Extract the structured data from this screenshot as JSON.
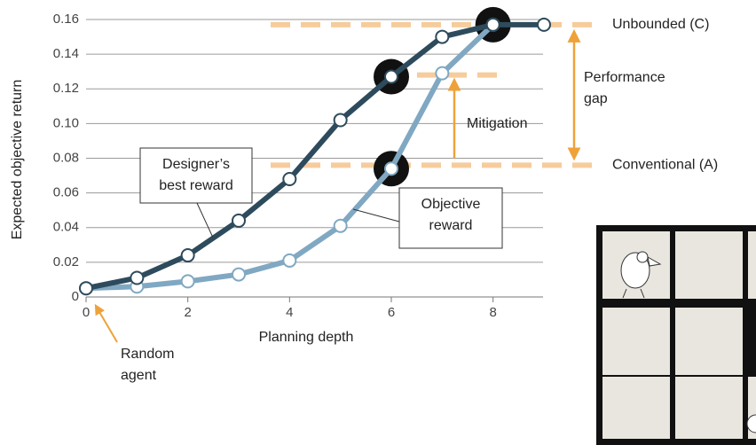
{
  "chart_data": {
    "type": "line",
    "ylabel": "Expected objective return",
    "xlabel": "Planning depth",
    "x": [
      0,
      1,
      2,
      3,
      4,
      5,
      6,
      7,
      8,
      9
    ],
    "series": [
      {
        "label_lines": [
          "Designer’s",
          "best reward"
        ],
        "color": "#2d4b5c",
        "values": [
          0.005,
          0.011,
          0.024,
          0.044,
          0.068,
          0.102,
          0.127,
          0.15,
          0.157,
          0.157
        ]
      },
      {
        "label_lines": [
          "Objective",
          "reward"
        ],
        "color": "#80a8c2",
        "values": [
          0.005,
          0.006,
          0.009,
          0.013,
          0.021,
          0.041,
          0.074,
          0.129,
          0.157,
          null
        ]
      }
    ],
    "highlights": [
      {
        "x": 6,
        "y": 0.127
      },
      {
        "x": 6,
        "y": 0.074
      },
      {
        "x": 8,
        "y": 0.157
      }
    ],
    "reference_lines": [
      {
        "value": 0.157,
        "label": "Unbounded (C)"
      },
      {
        "value": 0.076,
        "label": "Conventional (A)"
      },
      {
        "value": 0.128
      }
    ],
    "annotations": {
      "gap": [
        "Performance",
        "gap"
      ],
      "mitigation": "Mitigation",
      "random": [
        "Random",
        "agent"
      ]
    },
    "xlim": [
      0,
      9
    ],
    "xticks": [
      0,
      2,
      4,
      6,
      8
    ],
    "ylim": [
      0,
      0.16
    ],
    "yticks": [
      {
        "value": 0,
        "label": "0"
      },
      0.02,
      0.04,
      0.06,
      0.08,
      {
        "value": 0.1,
        "label": "0.10"
      },
      0.12,
      0.14,
      0.16
    ],
    "grid": true
  }
}
